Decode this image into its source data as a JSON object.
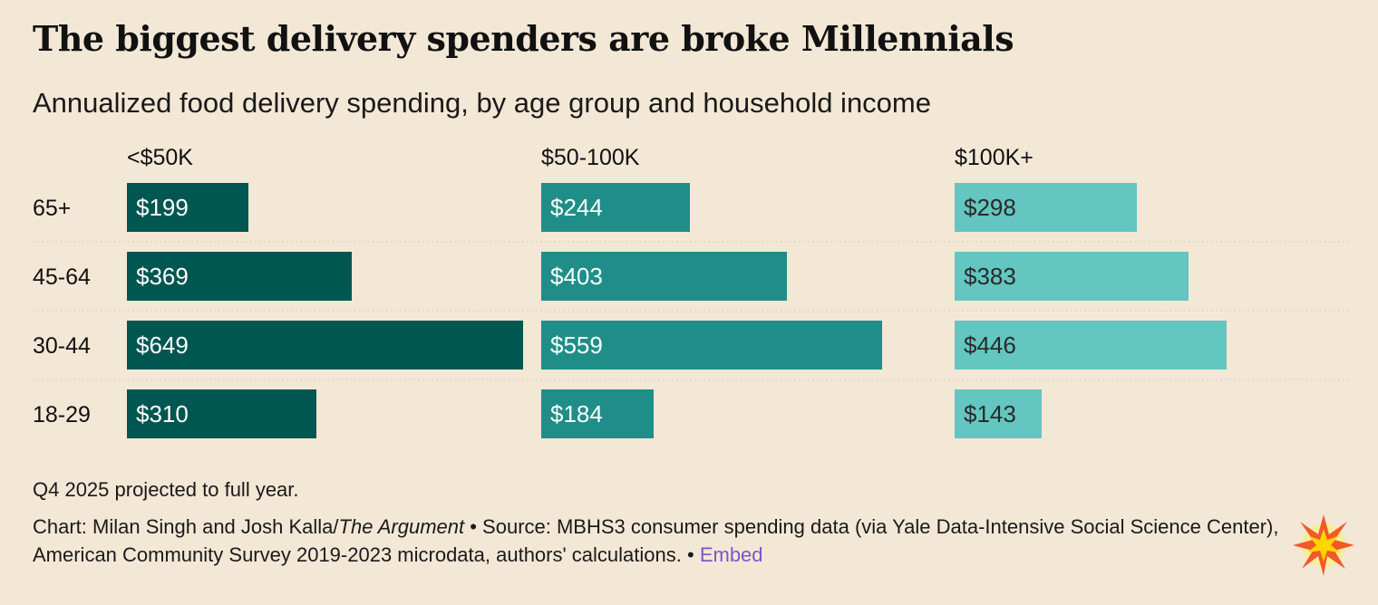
{
  "title": "The biggest delivery spenders are broke Millennials",
  "subtitle": "Annualized food delivery spending, by age group and household income",
  "chart_data": {
    "type": "bar",
    "orientation": "horizontal",
    "layout": "small-multiples",
    "title": "The biggest delivery spenders are broke Millennials",
    "subtitle": "Annualized food delivery spending, by age group and household income",
    "categories": [
      "65+",
      "45-64",
      "30-44",
      "18-29"
    ],
    "series": [
      {
        "name": "<$50K",
        "values": [
          199,
          369,
          649,
          310
        ],
        "labels": [
          "$199",
          "$369",
          "$649",
          "$310"
        ],
        "color": "#005650",
        "label_color": "#ffffff"
      },
      {
        "name": "$50-100K",
        "values": [
          244,
          403,
          559,
          184
        ],
        "labels": [
          "$244",
          "$403",
          "$559",
          "$184"
        ],
        "color": "#1f8e88",
        "label_color": "#ffffff"
      },
      {
        "name": "$100K+",
        "values": [
          298,
          383,
          446,
          143
        ],
        "labels": [
          "$298",
          "$383",
          "$446",
          "$143"
        ],
        "color": "#64c6c0",
        "label_color": "#2a2a2a"
      }
    ],
    "xlim": [
      0,
      649
    ],
    "grid": false,
    "legend": "none"
  },
  "footer": {
    "note": "Q4 2025 projected to full year.",
    "credit_prefix": "Chart: Milan Singh and Josh Kalla/",
    "publication": "The Argument",
    "source": " • Source: MBHS3 consumer spending data (via Yale Data-Intensive Social Science Center), American Community Survey 2019-2023 microdata, authors' calculations. ",
    "sep": " • ",
    "embed_label": "Embed"
  },
  "colors": {
    "background": "#f3e7d6",
    "divider": "#d9cdbd",
    "embed_link": "#7d55c7",
    "burst_outer": "#f05a28",
    "burst_inner": "#ffd400"
  },
  "logo_icon": "starburst-logo-icon"
}
